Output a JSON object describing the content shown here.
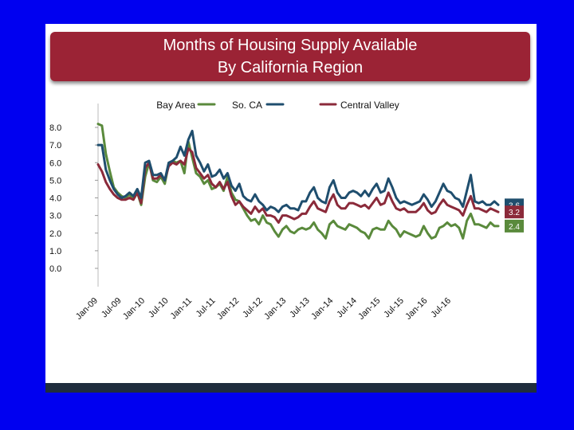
{
  "title_line1": "Months of Housing Supply Available",
  "title_line2": "By California Region",
  "colors": {
    "bay_area": "#5a8a3c",
    "so_ca": "#1f4e6e",
    "central_valley": "#8b2a3a"
  },
  "chart_data": {
    "type": "line",
    "title": "Months of Housing Supply Available By California Region",
    "xlabel": "",
    "ylabel": "",
    "ylim": [
      0,
      8
    ],
    "yticks": [
      "0.0",
      "1.0",
      "2.0",
      "3.0",
      "4.0",
      "5.0",
      "6.0",
      "7.0",
      "8.0"
    ],
    "xticks": [
      "Jan-09",
      "Jul-09",
      "Jan-10",
      "Jul-10",
      "Jan-11",
      "Jul-11",
      "Jan-12",
      "Jul-12",
      "Jan-13",
      "Jul-13",
      "Jan-14",
      "Jul-14",
      "Jan-15",
      "Jul-15",
      "Jan-16",
      "Jul-16"
    ],
    "legend_position": "top",
    "grid": false,
    "series": [
      {
        "name": "Bay Area",
        "color": "#5a8a3c",
        "end_label": "2.4",
        "values": [
          8.2,
          8.1,
          6.5,
          5.5,
          4.6,
          4.3,
          4.1,
          4.0,
          4.2,
          3.9,
          4.3,
          3.6,
          5.2,
          6.0,
          5.0,
          4.9,
          5.2,
          4.8,
          5.9,
          6.1,
          6.0,
          6.1,
          5.4,
          7.2,
          6.3,
          5.4,
          5.2,
          4.8,
          5.0,
          4.5,
          4.6,
          4.8,
          4.4,
          5.2,
          4.3,
          3.9,
          3.8,
          3.4,
          3.0,
          2.7,
          2.8,
          2.5,
          3.0,
          2.6,
          2.5,
          2.1,
          1.8,
          2.2,
          2.4,
          2.1,
          2.0,
          2.2,
          2.3,
          2.2,
          2.3,
          2.6,
          2.2,
          2.0,
          1.7,
          2.5,
          2.7,
          2.4,
          2.3,
          2.2,
          2.5,
          2.4,
          2.3,
          2.1,
          2.0,
          1.7,
          2.2,
          2.3,
          2.2,
          2.2,
          2.7,
          2.4,
          2.2,
          1.8,
          2.1,
          2.0,
          1.9,
          1.8,
          1.9,
          2.4,
          2.0,
          1.7,
          1.8,
          2.3,
          2.4,
          2.6,
          2.4,
          2.5,
          2.3,
          1.7,
          2.7,
          3.1,
          2.5,
          2.5,
          2.4,
          2.3,
          2.6,
          2.4,
          2.4
        ]
      },
      {
        "name": "So. CA",
        "color": "#1f4e6e",
        "end_label": "3.6",
        "values": [
          7.0,
          7.0,
          5.6,
          5.0,
          4.5,
          4.2,
          4.0,
          4.1,
          4.3,
          4.1,
          4.5,
          4.0,
          6.0,
          6.1,
          5.3,
          5.3,
          5.4,
          5.0,
          6.0,
          6.1,
          6.3,
          6.9,
          6.4,
          7.3,
          7.8,
          6.4,
          6.0,
          5.5,
          5.9,
          5.2,
          5.3,
          5.6,
          5.1,
          5.4,
          4.7,
          4.4,
          4.8,
          4.1,
          3.9,
          3.8,
          4.2,
          3.8,
          3.6,
          3.3,
          3.5,
          3.4,
          3.2,
          3.5,
          3.6,
          3.4,
          3.4,
          3.3,
          3.8,
          3.8,
          4.3,
          4.6,
          4.0,
          3.8,
          3.7,
          4.6,
          5.0,
          4.3,
          4.0,
          4.0,
          4.3,
          4.4,
          4.3,
          4.1,
          4.4,
          4.1,
          4.5,
          4.8,
          4.3,
          4.4,
          5.1,
          4.6,
          4.0,
          3.7,
          3.8,
          3.7,
          3.6,
          3.7,
          3.8,
          4.2,
          3.9,
          3.5,
          3.8,
          4.3,
          4.8,
          4.4,
          4.3,
          4.0,
          3.9,
          3.5,
          4.4,
          5.3,
          3.8,
          3.7,
          3.8,
          3.6,
          3.6,
          3.8,
          3.6
        ]
      },
      {
        "name": "Central Valley",
        "color": "#8b2a3a",
        "end_label": "3.2",
        "values": [
          5.9,
          5.5,
          4.9,
          4.5,
          4.2,
          4.0,
          3.9,
          3.9,
          4.0,
          3.9,
          4.3,
          3.7,
          5.7,
          6.0,
          5.1,
          5.1,
          5.3,
          5.0,
          5.8,
          6.0,
          5.9,
          6.1,
          5.9,
          6.8,
          6.6,
          5.7,
          5.4,
          5.1,
          5.3,
          4.8,
          4.6,
          4.9,
          4.5,
          4.9,
          4.1,
          3.6,
          3.8,
          3.5,
          3.3,
          3.1,
          3.5,
          3.2,
          3.4,
          3.0,
          3.0,
          2.9,
          2.6,
          3.0,
          3.0,
          2.9,
          2.8,
          2.9,
          3.1,
          3.1,
          3.5,
          3.8,
          3.4,
          3.3,
          3.2,
          3.8,
          4.2,
          3.6,
          3.4,
          3.4,
          3.7,
          3.7,
          3.6,
          3.5,
          3.6,
          3.4,
          3.7,
          4.0,
          3.6,
          3.7,
          4.3,
          3.8,
          3.4,
          3.3,
          3.4,
          3.2,
          3.2,
          3.2,
          3.4,
          3.7,
          3.3,
          3.1,
          3.2,
          3.6,
          3.9,
          3.6,
          3.5,
          3.4,
          3.3,
          3.0,
          3.6,
          4.1,
          3.4,
          3.4,
          3.3,
          3.2,
          3.4,
          3.3,
          3.2
        ]
      }
    ]
  }
}
